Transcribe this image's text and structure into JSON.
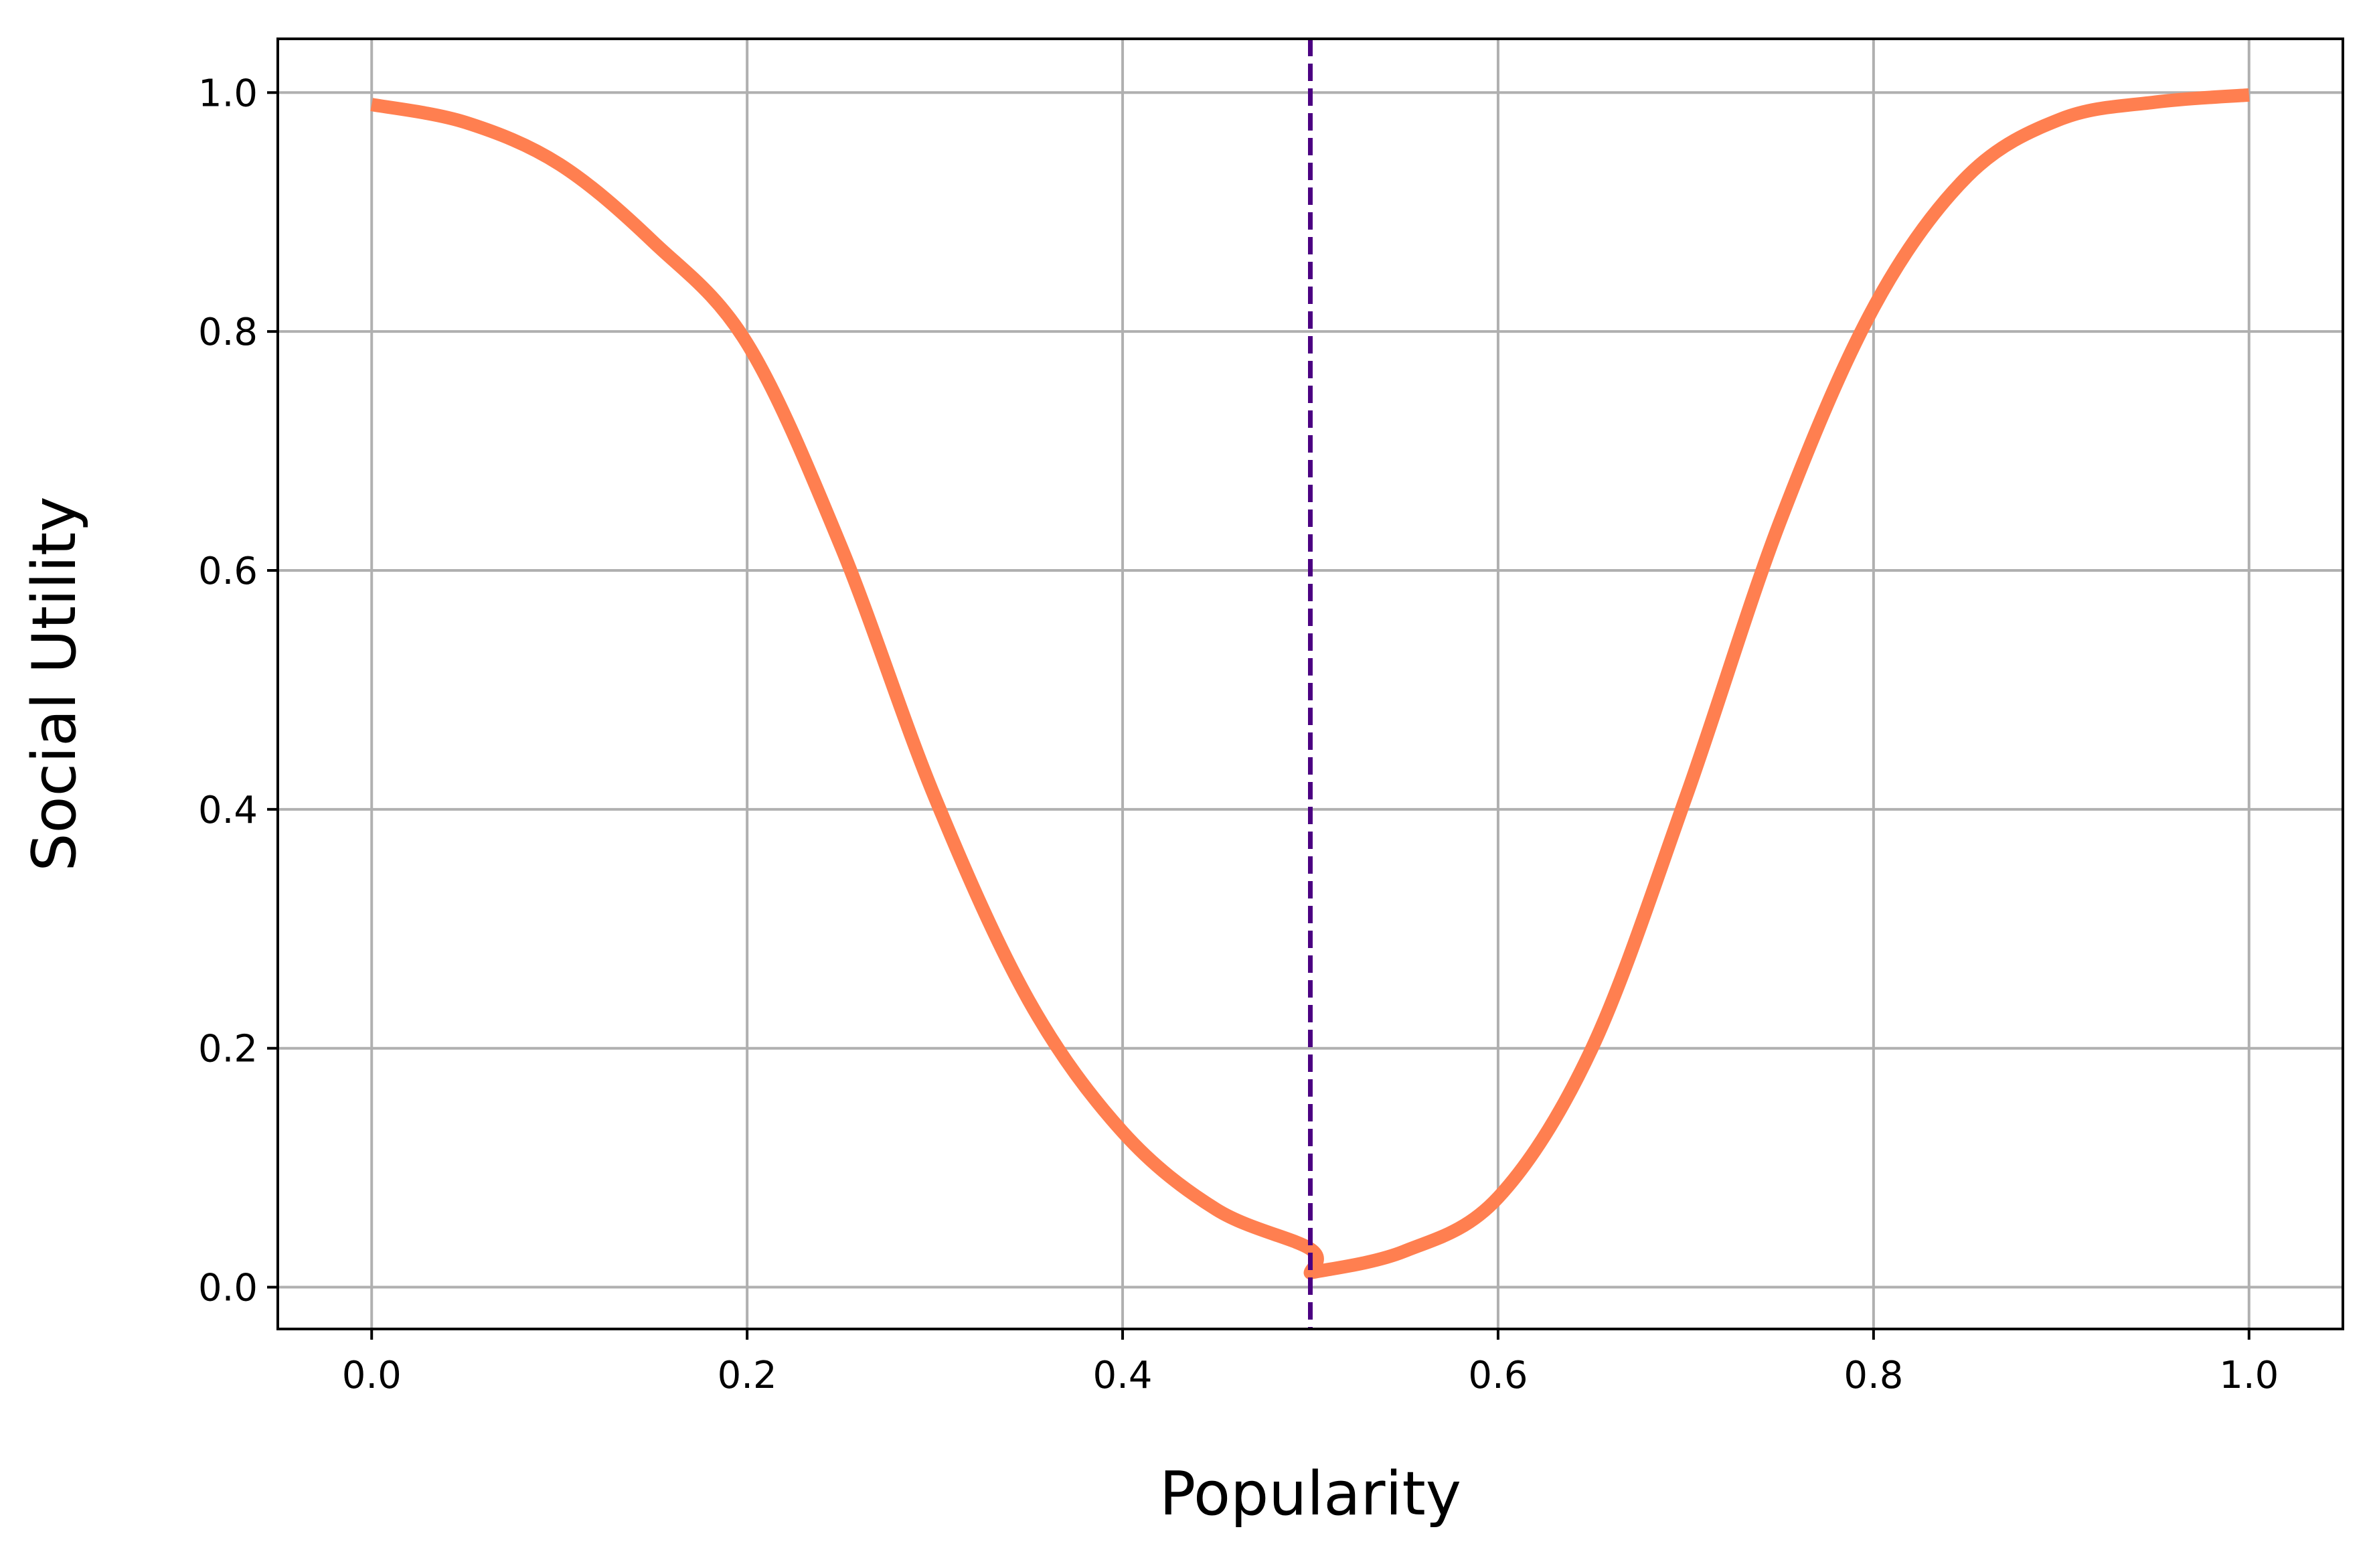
{
  "chart_data": {
    "type": "line",
    "title": "",
    "xlabel": "Popularity",
    "ylabel": "Social Utility",
    "xlim": [
      -0.05,
      1.05
    ],
    "ylim": [
      -0.035,
      1.045
    ],
    "x_ticks": [
      0.0,
      0.2,
      0.4,
      0.6,
      0.8,
      1.0
    ],
    "x_tick_labels": [
      "0.0",
      "0.2",
      "0.4",
      "0.6",
      "0.8",
      "1.0"
    ],
    "y_ticks": [
      0.0,
      0.2,
      0.4,
      0.6,
      0.8,
      1.0
    ],
    "y_tick_labels": [
      "0.0",
      "0.2",
      "0.4",
      "0.6",
      "0.8",
      "1.0"
    ],
    "grid": true,
    "series": [
      {
        "color": "#FF7F50",
        "x": [
          0.0,
          0.05,
          0.1,
          0.15,
          0.2,
          0.25,
          0.3,
          0.35,
          0.4,
          0.45,
          0.5,
          0.5,
          0.55,
          0.6,
          0.65,
          0.7,
          0.75,
          0.8,
          0.85,
          0.9,
          0.95,
          1.0
        ],
        "y": [
          0.99,
          0.975,
          0.94,
          0.875,
          0.79,
          0.62,
          0.41,
          0.24,
          0.13,
          0.065,
          0.032,
          0.012,
          0.03,
          0.075,
          0.2,
          0.41,
          0.64,
          0.82,
          0.93,
          0.978,
          0.992,
          0.998
        ]
      }
    ],
    "vlines": [
      {
        "x": 0.5,
        "color": "#4B0082",
        "style": "dashed"
      }
    ]
  }
}
